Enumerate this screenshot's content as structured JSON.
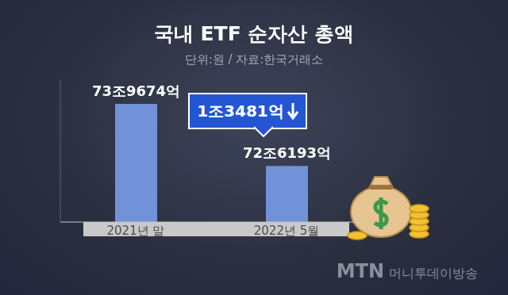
{
  "chart_data": {
    "type": "bar",
    "title": "국내 ETF 순자산 총액",
    "subtitle": "단위:원 / 자료:한국거래소",
    "categories": [
      "2021년 말",
      "2022년 5월"
    ],
    "values": [
      739674,
      726193
    ],
    "value_labels": [
      "73조9674억",
      "72조6193억"
    ],
    "color": "#7191d9",
    "ylim": [
      714000,
      745000
    ],
    "grid": false,
    "tick_labels": false,
    "data_labels": true,
    "annotations": [
      {
        "text": "1조3481억"
      }
    ],
    "credit": "MTN 머니투데이방송"
  }
}
